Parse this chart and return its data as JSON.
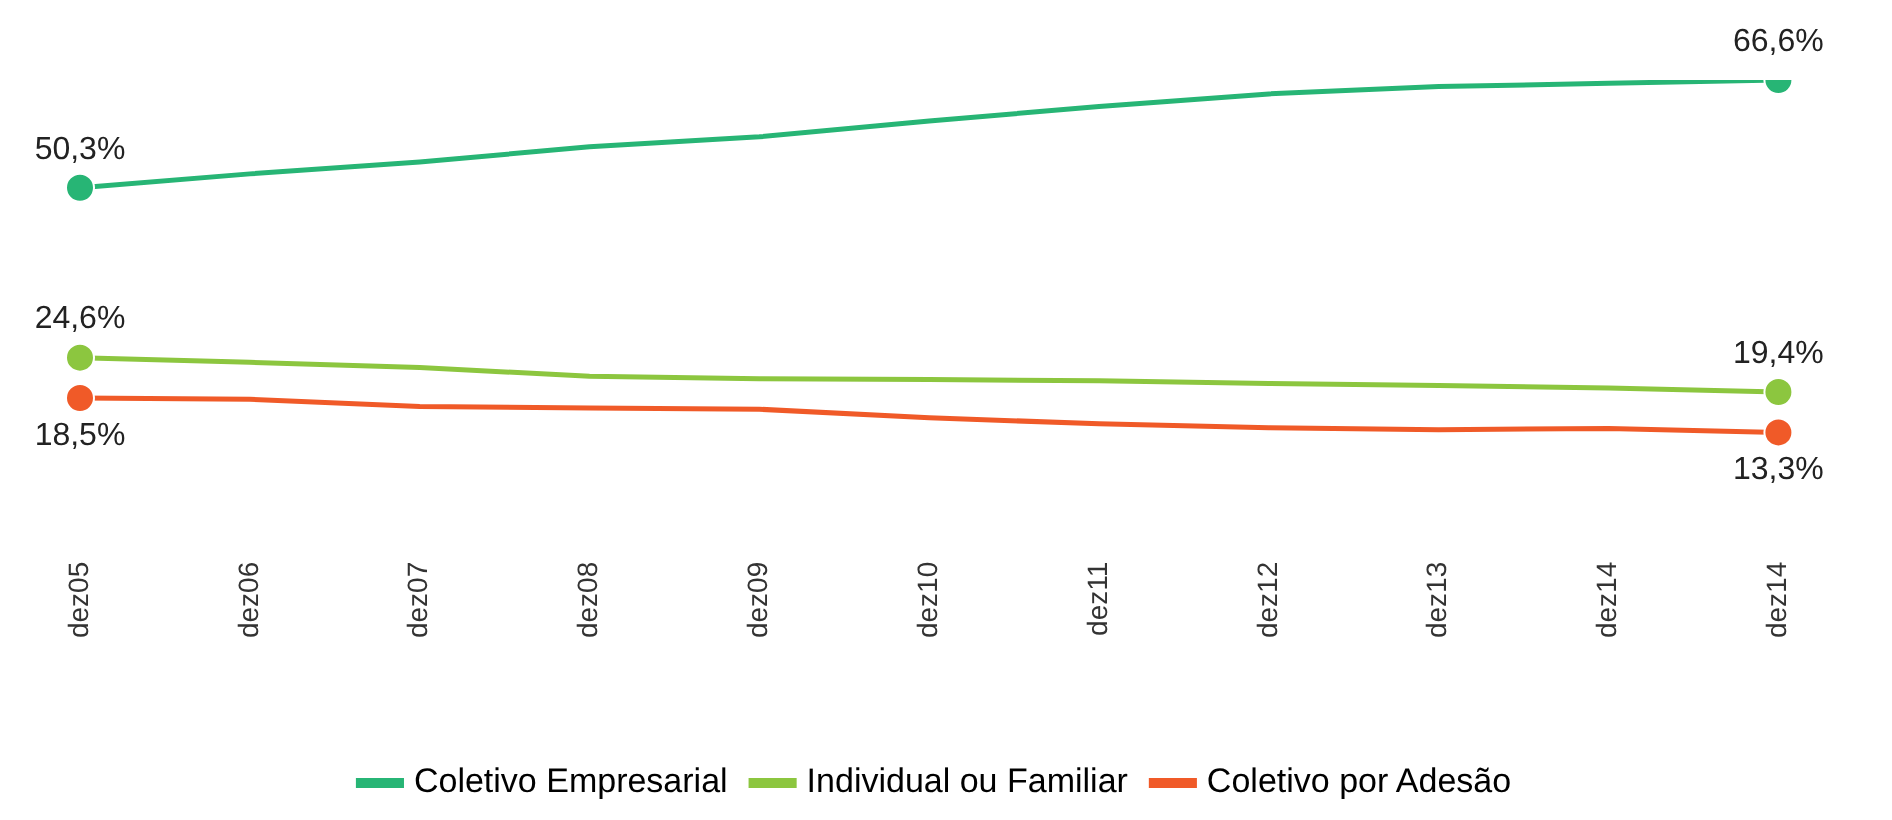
{
  "chart_data": {
    "type": "line",
    "categories": [
      "dez05",
      "dez06",
      "dez07",
      "dez08",
      "dez09",
      "dez10",
      "dez11",
      "dez12",
      "dez13",
      "dez14",
      "dez14"
    ],
    "series": [
      {
        "name": "Coletivo Empresarial",
        "color": "#27b575",
        "values": [
          50.3,
          52.4,
          54.2,
          56.5,
          58.0,
          60.4,
          62.6,
          64.5,
          65.6,
          66.1,
          66.6
        ],
        "value_labels": [
          "50,3%",
          null,
          null,
          null,
          null,
          null,
          null,
          null,
          null,
          null,
          "66,6%"
        ]
      },
      {
        "name": "Individual ou Familiar",
        "color": "#8cc63f",
        "values": [
          24.6,
          23.9,
          23.1,
          21.8,
          21.4,
          21.3,
          21.1,
          20.7,
          20.4,
          20.0,
          19.4
        ],
        "value_labels": [
          "24,6%",
          null,
          null,
          null,
          null,
          null,
          null,
          null,
          null,
          null,
          "19,4%"
        ]
      },
      {
        "name": "Coletivo por Adesão",
        "color": "#f05a28",
        "values": [
          18.5,
          18.3,
          17.2,
          17.0,
          16.8,
          15.5,
          14.6,
          14.0,
          13.7,
          13.9,
          13.3
        ],
        "value_labels": [
          "18,5%",
          null,
          null,
          null,
          null,
          null,
          null,
          null,
          null,
          null,
          "13,3%"
        ]
      }
    ],
    "legend": "bottom",
    "grid": false
  }
}
